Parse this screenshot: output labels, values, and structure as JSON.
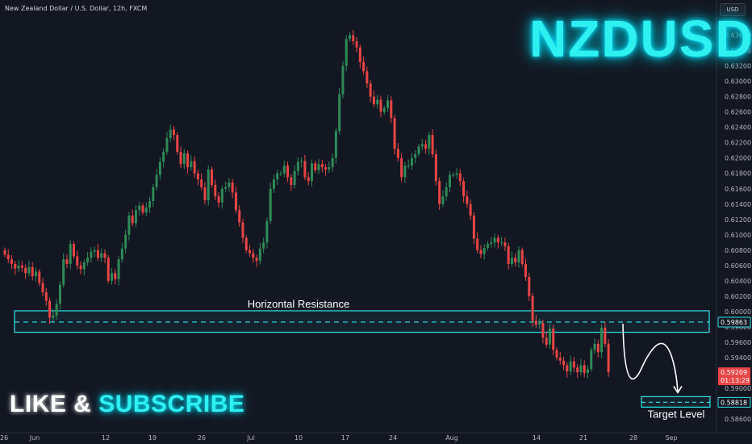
{
  "header": {
    "symbol_title": "New Zealand Dollar / U.S. Dollar, 12h, FXCM",
    "currency_button": "USD"
  },
  "overlay": {
    "big_symbol": "NZDUSD",
    "like_word": "LIKE",
    "ampersand": " & ",
    "subscribe_word": "SUBSCRIBE"
  },
  "colors": {
    "background": "#131722",
    "up_candle": "#2e8b57",
    "down_candle": "#e84545",
    "zone": "#2ee6e6",
    "neon_text": "#2ef0f0"
  },
  "chart_data": {
    "type": "candlestick",
    "price_axis": {
      "min": 0.5857,
      "max": 0.6375,
      "ticks": [
        "0.63600",
        "0.63400",
        "0.63200",
        "0.63000",
        "0.62800",
        "0.62600",
        "0.62400",
        "0.62200",
        "0.62000",
        "0.61800",
        "0.61600",
        "0.61400",
        "0.61200",
        "0.61000",
        "0.60800",
        "0.60600",
        "0.60400",
        "0.60200",
        "0.60000",
        "0.59800",
        "0.59600",
        "0.59400",
        "0.59000",
        "0.58600"
      ],
      "current_price_label": "0.59209",
      "countdown_label": "01:13:29",
      "resistance_label": "0.59863",
      "target_label": "0.58818"
    },
    "time_axis": {
      "labels": [
        "26",
        "Jun",
        "12",
        "19",
        "26",
        "Jul",
        "10",
        "17",
        "24",
        "Aug",
        "14",
        "21",
        "28",
        "Sep"
      ]
    },
    "resistance_zone": {
      "label": "Horizontal Resistance",
      "top": 0.6001,
      "bottom": 0.5973,
      "level": 0.59863
    },
    "target": {
      "label": "Target Level",
      "level": 0.58818
    },
    "projected_path": [
      0.5984,
      0.5925,
      0.5958,
      0.5888
    ],
    "closes": [
      0.6074,
      0.6068,
      0.6062,
      0.6056,
      0.606,
      0.6057,
      0.605,
      0.6058,
      0.6046,
      0.6052,
      0.6037,
      0.6025,
      0.6014,
      0.5992,
      0.5995,
      0.601,
      0.6035,
      0.6068,
      0.6062,
      0.6088,
      0.6072,
      0.606,
      0.6055,
      0.6064,
      0.607,
      0.6078,
      0.608,
      0.607,
      0.6076,
      0.607,
      0.604,
      0.605,
      0.6042,
      0.6068,
      0.6082,
      0.61,
      0.6125,
      0.6115,
      0.6132,
      0.6138,
      0.6129,
      0.6135,
      0.6144,
      0.6162,
      0.6178,
      0.6195,
      0.6208,
      0.6226,
      0.6237,
      0.623,
      0.6208,
      0.6192,
      0.6206,
      0.6188,
      0.6196,
      0.618,
      0.6172,
      0.6162,
      0.6145,
      0.6185,
      0.6165,
      0.615,
      0.6142,
      0.616,
      0.6162,
      0.6168,
      0.6155,
      0.6132,
      0.6116,
      0.6096,
      0.608,
      0.6076,
      0.607,
      0.6066,
      0.6082,
      0.609,
      0.6118,
      0.616,
      0.6172,
      0.618,
      0.618,
      0.619,
      0.6175,
      0.6165,
      0.6183,
      0.6195,
      0.6196,
      0.6175,
      0.617,
      0.6193,
      0.6184,
      0.6192,
      0.6188,
      0.6185,
      0.6188,
      0.62,
      0.6235,
      0.6283,
      0.632,
      0.6355,
      0.636,
      0.6352,
      0.6344,
      0.6325,
      0.6313,
      0.6297,
      0.628,
      0.627,
      0.6276,
      0.626,
      0.6265,
      0.6275,
      0.6252,
      0.6212,
      0.62,
      0.6175,
      0.619,
      0.619,
      0.62,
      0.6205,
      0.6215,
      0.6218,
      0.6212,
      0.623,
      0.6205,
      0.617,
      0.614,
      0.615,
      0.6162,
      0.6178,
      0.6178,
      0.618,
      0.617,
      0.615,
      0.614,
      0.6125,
      0.6095,
      0.608,
      0.6075,
      0.6083,
      0.6088,
      0.609,
      0.6096,
      0.609,
      0.609,
      0.6085,
      0.6062,
      0.607,
      0.6064,
      0.608,
      0.6062,
      0.6045,
      0.602,
      0.5988,
      0.5983,
      0.5985,
      0.5966,
      0.5957,
      0.5978,
      0.595,
      0.594,
      0.5936,
      0.593,
      0.5922,
      0.5935,
      0.5927,
      0.5921,
      0.593,
      0.592,
      0.5925,
      0.595,
      0.5958,
      0.5947,
      0.5979,
      0.5958,
      0.5921
    ]
  }
}
